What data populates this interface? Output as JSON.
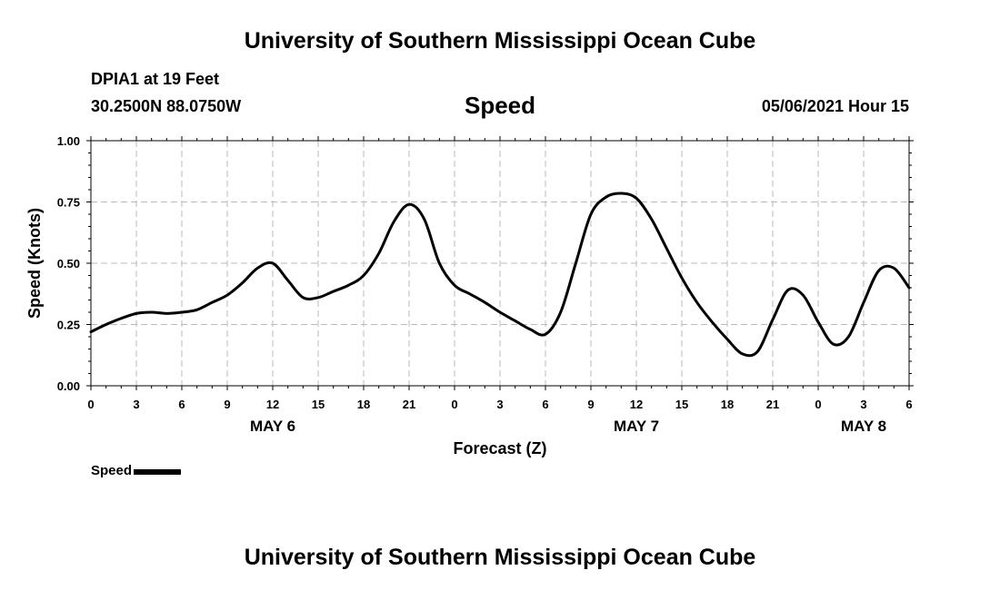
{
  "header": {
    "title": "University of Southern Mississippi Ocean Cube",
    "station": "DPIA1 at 19 Feet",
    "coordinates": "30.2500N  88.0750W",
    "variable": "Speed",
    "datetime": "05/06/2021 Hour 15"
  },
  "footer": {
    "title": "University of Southern Mississippi Ocean Cube"
  },
  "legend": {
    "label": "Speed"
  },
  "chart_data": {
    "type": "line",
    "title": "Speed",
    "xlabel": "Forecast (Z)",
    "ylabel": "Speed (Knots)",
    "xlim": [
      0,
      54
    ],
    "ylim": [
      0,
      1
    ],
    "grid": true,
    "legend_position": "bottom-left",
    "yticks": [
      0.0,
      0.25,
      0.5,
      0.75,
      1.0
    ],
    "ytick_labels": [
      "0.00",
      "0.25",
      "0.50",
      "0.75",
      "1.00"
    ],
    "xticks": [
      0,
      3,
      6,
      9,
      12,
      15,
      18,
      21,
      24,
      27,
      30,
      33,
      36,
      39,
      42,
      45,
      48,
      51,
      54
    ],
    "xtick_labels": [
      "0",
      "3",
      "6",
      "9",
      "12",
      "15",
      "18",
      "21",
      "0",
      "3",
      "6",
      "9",
      "12",
      "15",
      "18",
      "21",
      "0",
      "3",
      "6"
    ],
    "date_labels": [
      {
        "hours": 12,
        "label": "MAY 6"
      },
      {
        "hours": 36,
        "label": "MAY 7"
      },
      {
        "hours": 51,
        "label": "MAY 8"
      }
    ],
    "series": [
      {
        "name": "Speed",
        "color": "#000000",
        "x": [
          0,
          1,
          2,
          3,
          4,
          5,
          6,
          7,
          8,
          9,
          10,
          11,
          12,
          13,
          14,
          15,
          16,
          17,
          18,
          19,
          20,
          21,
          22,
          23,
          24,
          25,
          26,
          27,
          28,
          29,
          30,
          31,
          32,
          33,
          34,
          35,
          36,
          37,
          38,
          39,
          40,
          41,
          42,
          43,
          44,
          45,
          46,
          47,
          48,
          49,
          50,
          51,
          52,
          53,
          54
        ],
        "y": [
          0.22,
          0.25,
          0.275,
          0.295,
          0.3,
          0.295,
          0.3,
          0.31,
          0.34,
          0.37,
          0.42,
          0.48,
          0.5,
          0.43,
          0.36,
          0.36,
          0.385,
          0.41,
          0.45,
          0.54,
          0.67,
          0.74,
          0.68,
          0.5,
          0.41,
          0.375,
          0.34,
          0.3,
          0.265,
          0.23,
          0.21,
          0.3,
          0.5,
          0.7,
          0.77,
          0.785,
          0.765,
          0.68,
          0.56,
          0.44,
          0.34,
          0.26,
          0.19,
          0.13,
          0.14,
          0.27,
          0.39,
          0.37,
          0.26,
          0.17,
          0.2,
          0.34,
          0.47,
          0.48,
          0.4
        ]
      }
    ]
  }
}
